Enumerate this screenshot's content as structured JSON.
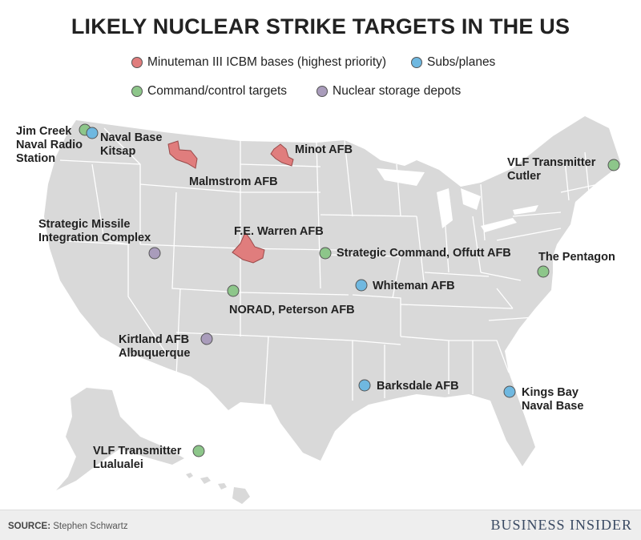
{
  "title": "LIKELY NUCLEAR STRIKE TARGETS IN THE US",
  "legend": [
    {
      "label": "Minuteman III ICBM bases (highest priority)",
      "color": "#e07d7d"
    },
    {
      "label": "Subs/planes",
      "color": "#6fb8e0"
    },
    {
      "label": "Command/control targets",
      "color": "#8dc68a"
    },
    {
      "label": "Nuclear storage depots",
      "color": "#a99cbb"
    }
  ],
  "colors": {
    "land": "#d9d9d9",
    "state_border": "#ffffff",
    "icbm": "#e07d7d",
    "subs": "#6fb8e0",
    "command": "#8dc68a",
    "storage": "#a99cbb"
  },
  "targets": {
    "jim_creek": {
      "lines": [
        "Jim Creek",
        "Naval Radio",
        "Station"
      ],
      "type": "command"
    },
    "kitsap": {
      "lines": [
        "Naval Base",
        "Kitsap"
      ],
      "type": "subs"
    },
    "malmstrom": {
      "lines": [
        "Malmstrom AFB"
      ],
      "type": "icbm"
    },
    "minot": {
      "lines": [
        "Minot AFB"
      ],
      "type": "icbm"
    },
    "cutler": {
      "lines": [
        "VLF Transmitter",
        "Cutler"
      ],
      "type": "command"
    },
    "strategic_missile": {
      "lines": [
        "Strategic Missile",
        "Integration Complex"
      ],
      "type": "storage"
    },
    "fe_warren": {
      "lines": [
        "F.E. Warren AFB"
      ],
      "type": "icbm"
    },
    "offutt": {
      "lines": [
        "Strategic Command, Offutt AFB"
      ],
      "type": "command"
    },
    "pentagon": {
      "lines": [
        "The Pentagon"
      ],
      "type": "command"
    },
    "whiteman": {
      "lines": [
        "Whiteman AFB"
      ],
      "type": "subs"
    },
    "norad": {
      "lines": [
        "NORAD, Peterson AFB"
      ],
      "type": "command"
    },
    "kirtland": {
      "lines": [
        "Kirtland AFB",
        "Albuquerque"
      ],
      "type": "storage"
    },
    "barksdale": {
      "lines": [
        "Barksdale AFB"
      ],
      "type": "subs"
    },
    "kings_bay": {
      "lines": [
        "Kings Bay",
        "Naval Base"
      ],
      "type": "subs"
    },
    "lualualei": {
      "lines": [
        "VLF Transmitter",
        "Lualualei"
      ],
      "type": "command"
    }
  },
  "footer": {
    "source_label": "SOURCE:",
    "source_text": "Stephen Schwartz",
    "brand": "BUSINESS INSIDER"
  }
}
